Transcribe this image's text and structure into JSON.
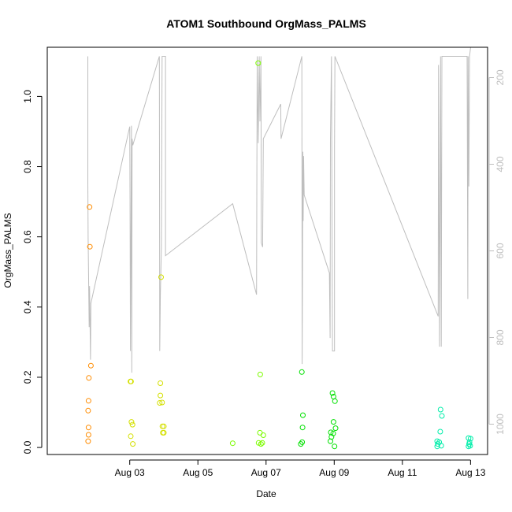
{
  "chart_data": {
    "type": "scatter",
    "title": "ATOM1 Southbound OrgMass_PALMS",
    "xlabel": "Date",
    "ylabel": "OrgMass_PALMS",
    "xlim": [
      0.58,
      13.5
    ],
    "ylim": [
      -0.02,
      1.14
    ],
    "x_ticks": [
      {
        "value": 3,
        "label": "Aug 03"
      },
      {
        "value": 5,
        "label": "Aug 05"
      },
      {
        "value": 7,
        "label": "Aug 07"
      },
      {
        "value": 9,
        "label": "Aug 09"
      },
      {
        "value": 11,
        "label": "Aug 11"
      },
      {
        "value": 13,
        "label": "Aug 13"
      }
    ],
    "y_ticks": [
      0.0,
      0.2,
      0.4,
      0.6,
      0.8,
      1.0
    ],
    "y_tick_labels": [
      "0.0",
      "0.2",
      "0.4",
      "0.6",
      "0.8",
      "1.0"
    ],
    "y2_ticks": [
      200,
      400,
      600,
      800,
      1000
    ],
    "y2_tick_labels": [
      "200",
      "400",
      "600",
      "800",
      "1000"
    ],
    "y2_lim": [
      1070,
      130
    ],
    "colors": {
      "axis": "#000000",
      "secondary_axis": "#bebebe",
      "secondary_line": "#bebebe"
    },
    "series": [
      {
        "color": "#ff8c00",
        "points": [
          [
            1.82,
            0.685
          ],
          [
            1.83,
            0.572
          ],
          [
            1.86,
            0.233
          ],
          [
            1.8,
            0.198
          ],
          [
            1.79,
            0.133
          ],
          [
            1.78,
            0.105
          ],
          [
            1.79,
            0.057
          ],
          [
            1.79,
            0.036
          ],
          [
            1.78,
            0.018
          ]
        ]
      },
      {
        "color": "#d4e000",
        "points": [
          [
            3.02,
            0.188
          ],
          [
            3.04,
            0.188
          ],
          [
            3.05,
            0.073
          ],
          [
            3.08,
            0.065
          ],
          [
            3.03,
            0.032
          ],
          [
            3.09,
            0.01
          ],
          [
            3.92,
            0.485
          ],
          [
            3.9,
            0.183
          ],
          [
            3.9,
            0.148
          ],
          [
            3.88,
            0.127
          ],
          [
            3.95,
            0.128
          ],
          [
            3.96,
            0.06
          ],
          [
            4.0,
            0.06
          ],
          [
            3.97,
            0.042
          ],
          [
            4.0,
            0.042
          ]
        ]
      },
      {
        "color": "#7cfc00",
        "points": [
          [
            6.02,
            0.012
          ],
          [
            6.77,
            1.095
          ],
          [
            6.83,
            0.208
          ],
          [
            6.82,
            0.042
          ],
          [
            6.92,
            0.035
          ],
          [
            6.78,
            0.013
          ],
          [
            6.85,
            0.01
          ],
          [
            6.89,
            0.013
          ]
        ]
      },
      {
        "color": "#00e000",
        "points": [
          [
            8.05,
            0.215
          ],
          [
            8.08,
            0.092
          ],
          [
            8.07,
            0.057
          ],
          [
            8.02,
            0.01
          ],
          [
            8.06,
            0.015
          ],
          [
            8.95,
            0.155
          ],
          [
            8.98,
            0.145
          ],
          [
            9.02,
            0.132
          ],
          [
            8.98,
            0.073
          ],
          [
            9.04,
            0.055
          ],
          [
            8.9,
            0.043
          ],
          [
            8.97,
            0.04
          ],
          [
            8.92,
            0.03
          ],
          [
            8.89,
            0.018
          ],
          [
            9.01,
            0.003
          ]
        ]
      },
      {
        "color": "#00eeaa",
        "points": [
          [
            12.12,
            0.108
          ],
          [
            12.16,
            0.09
          ],
          [
            12.11,
            0.045
          ],
          [
            12.02,
            0.018
          ],
          [
            12.08,
            0.015
          ],
          [
            12.04,
            0.01
          ],
          [
            12.14,
            0.005
          ],
          [
            12.02,
            0.003
          ],
          [
            12.94,
            0.027
          ],
          [
            13.0,
            0.025
          ],
          [
            12.97,
            0.015
          ],
          [
            12.96,
            0.01
          ],
          [
            12.99,
            0.005
          ],
          [
            12.94,
            0.003
          ]
        ]
      }
    ],
    "secondary_series": {
      "name": "",
      "points": [
        [
          1.77,
          151
        ],
        [
          1.77,
          441
        ],
        [
          1.78,
          571
        ],
        [
          1.81,
          776
        ],
        [
          1.82,
          681
        ],
        [
          1.85,
          851
        ],
        [
          1.86,
          721
        ],
        [
          3.0,
          313
        ],
        [
          3.01,
          491
        ],
        [
          3.02,
          831
        ],
        [
          3.05,
          311
        ],
        [
          3.06,
          881
        ],
        [
          3.07,
          341
        ],
        [
          3.09,
          356
        ],
        [
          3.87,
          151
        ],
        [
          3.88,
          831
        ],
        [
          3.9,
          701
        ],
        [
          3.93,
          591
        ],
        [
          3.95,
          151
        ],
        [
          4.05,
          151
        ],
        [
          4.05,
          611
        ],
        [
          6.02,
          491
        ],
        [
          6.72,
          701
        ],
        [
          6.74,
          151
        ],
        [
          6.77,
          351
        ],
        [
          6.8,
          151
        ],
        [
          6.82,
          301
        ],
        [
          6.85,
          151
        ],
        [
          6.86,
          581
        ],
        [
          6.9,
          591
        ],
        [
          6.92,
          341
        ],
        [
          7.43,
          261
        ],
        [
          7.44,
          341
        ],
        [
          8.05,
          151
        ],
        [
          8.06,
          861
        ],
        [
          8.08,
          371
        ],
        [
          8.09,
          531
        ],
        [
          8.1,
          381
        ],
        [
          8.12,
          471
        ],
        [
          8.86,
          651
        ],
        [
          8.88,
          801
        ],
        [
          8.89,
          341
        ],
        [
          8.92,
          151
        ],
        [
          8.95,
          831
        ],
        [
          9.01,
          831
        ],
        [
          9.01,
          361
        ],
        [
          9.02,
          151
        ],
        [
          12.05,
          751
        ],
        [
          12.06,
          171
        ],
        [
          12.09,
          821
        ],
        [
          12.12,
          151
        ],
        [
          12.14,
          821
        ],
        [
          12.16,
          151
        ],
        [
          12.9,
          151
        ],
        [
          12.92,
          711
        ],
        [
          12.93,
          151
        ],
        [
          12.95,
          451
        ],
        [
          12.97,
          151
        ],
        [
          13.0,
          131
        ]
      ]
    }
  }
}
